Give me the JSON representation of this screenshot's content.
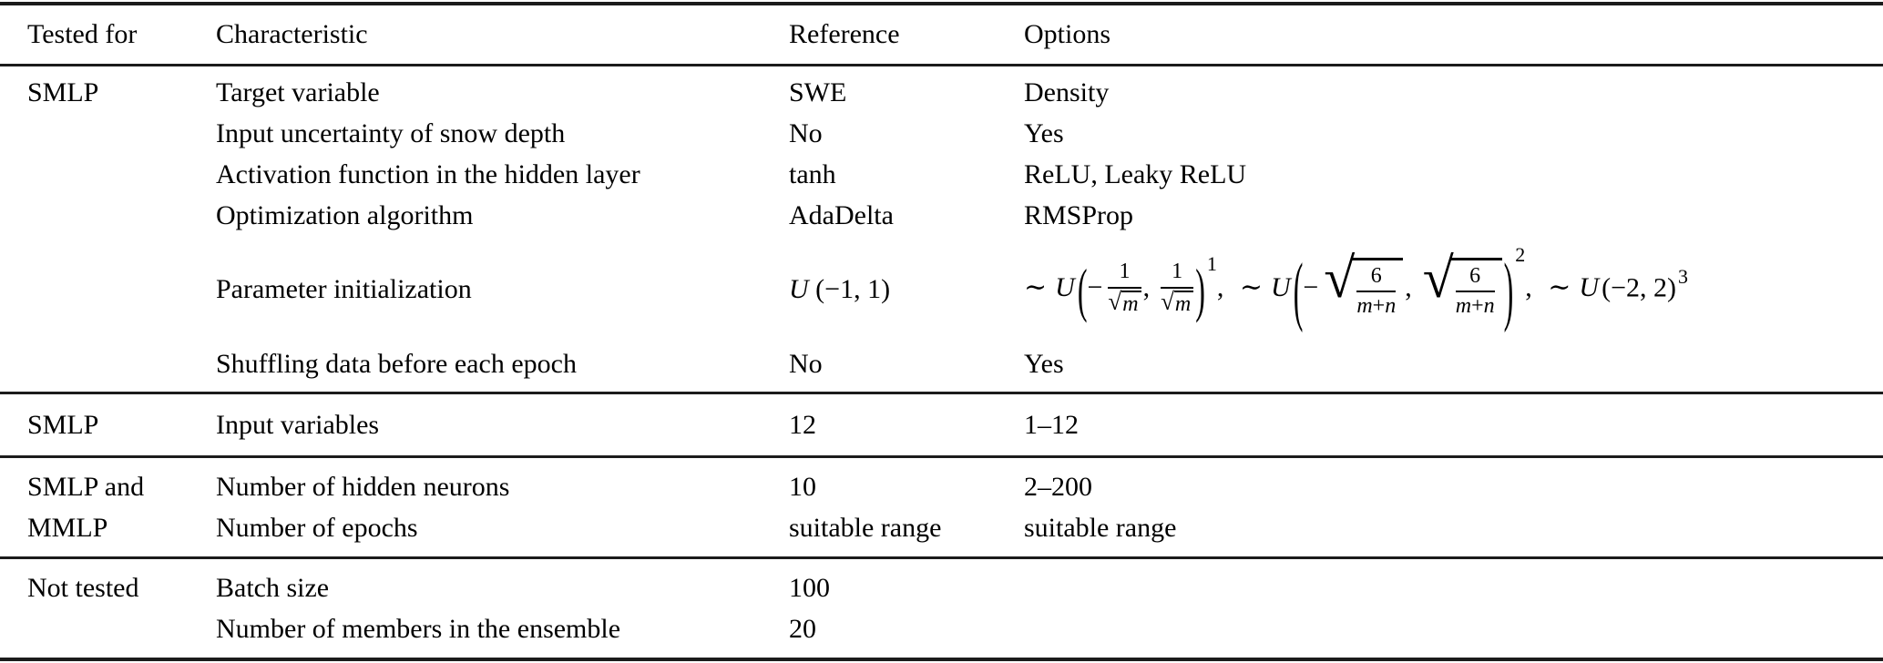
{
  "page": {
    "background": "#ffffff",
    "text_color": "#000000",
    "rule_color": "#1b1b1b"
  },
  "header": {
    "columns": [
      "Tested for",
      "Characteristic",
      "Reference",
      "Options"
    ]
  },
  "sections": [
    {
      "rows": [
        {
          "tested_for": "SMLP",
          "characteristic": "Target variable",
          "reference": "SWE",
          "options": "Density"
        },
        {
          "tested_for": "",
          "characteristic": "Input uncertainty of snow depth",
          "reference": "No",
          "options": "Yes"
        },
        {
          "tested_for": "",
          "characteristic": "Activation function in the hidden layer",
          "reference": "tanh",
          "options": "ReLU, Leaky ReLU"
        },
        {
          "tested_for": "",
          "characteristic": "Optimization algorithm",
          "reference": "AdaDelta",
          "options": "RMSProp"
        },
        {
          "tested_for": "",
          "characteristic": "Parameter initialization",
          "reference": "U (−1, 1)",
          "options": "∼U(−1/√m, 1/√m)^1, ∼U(−√(6/(m+n)), √(6/(m+n)))^2, ∼U(−2, 2)^3"
        },
        {
          "tested_for": "",
          "characteristic": "Shuffling data before each epoch",
          "reference": "No",
          "options": "Yes"
        }
      ]
    },
    {
      "rows": [
        {
          "tested_for": "SMLP",
          "characteristic": "Input variables",
          "reference": "12",
          "options": "1–12"
        }
      ]
    },
    {
      "rows": [
        {
          "tested_for": "SMLP and",
          "characteristic": "Number of hidden neurons",
          "reference": "10",
          "options": "2–200"
        },
        {
          "tested_for": "MMLP",
          "characteristic": "Number of epochs",
          "reference": "suitable range",
          "options": "suitable range"
        }
      ]
    },
    {
      "rows": [
        {
          "tested_for": "Not tested",
          "characteristic": "Batch size",
          "reference": "100",
          "options": ""
        },
        {
          "tested_for": "",
          "characteristic": "Number of members in the ensemble",
          "reference": "20",
          "options": ""
        }
      ]
    }
  ],
  "math": {
    "sqrt_sign": "√",
    "lparen": "(",
    "rparen": ")",
    "comma": ",",
    "plus": "+",
    "reference": {
      "u": "U",
      "args": " (−1, 1)"
    },
    "t1": {
      "sim": "∼",
      "u": "U",
      "minus": "−",
      "num": "1",
      "var": "m",
      "sup": "1"
    },
    "t2": {
      "sim": "∼",
      "u": "U",
      "minus": "−",
      "num": "6",
      "m": "m",
      "n": "n",
      "sup": "2"
    },
    "t3": {
      "sim": "∼",
      "u": "U",
      "args": "(−2, 2)",
      "sup": "3"
    }
  }
}
